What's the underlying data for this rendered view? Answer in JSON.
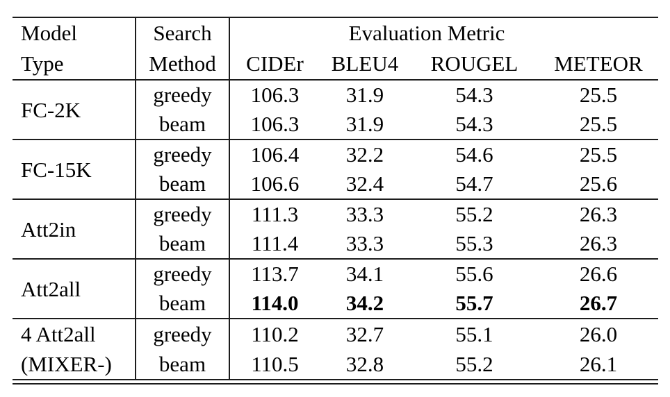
{
  "colors": {
    "background": "#ffffff",
    "text": "#000000",
    "rule": "#1c1c1c"
  },
  "table": {
    "header": {
      "col1_line1": "Model",
      "col1_line2": "Type",
      "col2_line1": "Search",
      "col2_line2": "Method",
      "metric_group": "Evaluation Metric",
      "metrics": [
        "CIDEr",
        "BLEU4",
        "ROUGEL",
        "METEOR"
      ]
    },
    "groups": [
      {
        "model_lines": [
          "FC-2K"
        ],
        "rows": [
          {
            "method": "greedy",
            "values": [
              "106.3",
              "31.9",
              "54.3",
              "25.5"
            ],
            "bold": false
          },
          {
            "method": "beam",
            "values": [
              "106.3",
              "31.9",
              "54.3",
              "25.5"
            ],
            "bold": false
          }
        ]
      },
      {
        "model_lines": [
          "FC-15K"
        ],
        "rows": [
          {
            "method": "greedy",
            "values": [
              "106.4",
              "32.2",
              "54.6",
              "25.5"
            ],
            "bold": false
          },
          {
            "method": "beam",
            "values": [
              "106.6",
              "32.4",
              "54.7",
              "25.6"
            ],
            "bold": false
          }
        ]
      },
      {
        "model_lines": [
          "Att2in"
        ],
        "rows": [
          {
            "method": "greedy",
            "values": [
              "111.3",
              "33.3",
              "55.2",
              "26.3"
            ],
            "bold": false
          },
          {
            "method": "beam",
            "values": [
              "111.4",
              "33.3",
              "55.3",
              "26.3"
            ],
            "bold": false
          }
        ]
      },
      {
        "model_lines": [
          "Att2all"
        ],
        "rows": [
          {
            "method": "greedy",
            "values": [
              "113.7",
              "34.1",
              "55.6",
              "26.6"
            ],
            "bold": false
          },
          {
            "method": "beam",
            "values": [
              "114.0",
              "34.2",
              "55.7",
              "26.7"
            ],
            "bold": true
          }
        ]
      },
      {
        "model_lines": [
          "4 Att2all",
          "(MIXER-)"
        ],
        "rows": [
          {
            "method": "greedy",
            "values": [
              "110.2",
              "32.7",
              "55.1",
              "26.0"
            ],
            "bold": false
          },
          {
            "method": "beam",
            "values": [
              "110.5",
              "32.8",
              "55.2",
              "26.1"
            ],
            "bold": false
          }
        ]
      }
    ]
  }
}
